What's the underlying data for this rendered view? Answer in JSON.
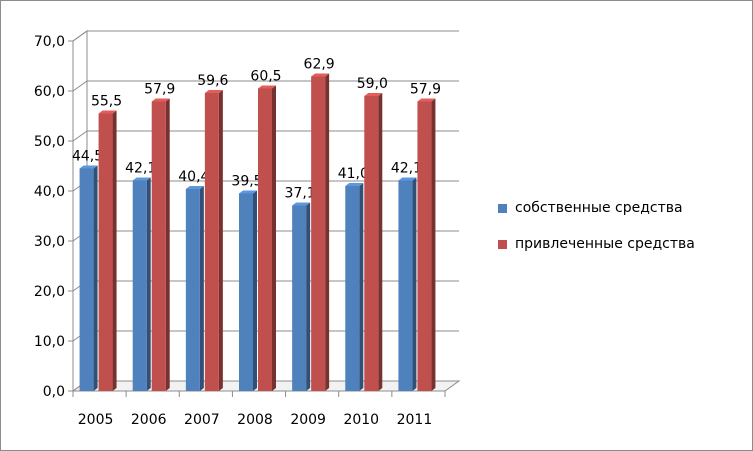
{
  "chart_data": {
    "type": "bar",
    "categories": [
      "2005",
      "2006",
      "2007",
      "2008",
      "2009",
      "2010",
      "2011"
    ],
    "series": [
      {
        "name": "собственные средства",
        "values": [
          44.5,
          42.1,
          40.4,
          39.5,
          37.1,
          41.0,
          42.1
        ],
        "labels": [
          "44,5",
          "42,1",
          "40,4",
          "39,5",
          "37,1",
          "41,0",
          "42,1"
        ],
        "color": "#4f81bd"
      },
      {
        "name": "привлеченные средства",
        "values": [
          55.5,
          57.9,
          59.6,
          60.5,
          62.9,
          59.0,
          57.9
        ],
        "labels": [
          "55,5",
          "57,9",
          "59,6",
          "60,5",
          "62,9",
          "59,0",
          "57,9"
        ],
        "color": "#c0504d"
      }
    ],
    "ylim": [
      0,
      70
    ],
    "yticks": [
      0,
      10,
      20,
      30,
      40,
      50,
      60,
      70
    ],
    "ytick_labels": [
      "0,0",
      "10,0",
      "20,0",
      "30,0",
      "40,0",
      "50,0",
      "60,0",
      "70,0"
    ],
    "grid": true,
    "legend_position": "right",
    "style": "3d-clustered-column"
  }
}
